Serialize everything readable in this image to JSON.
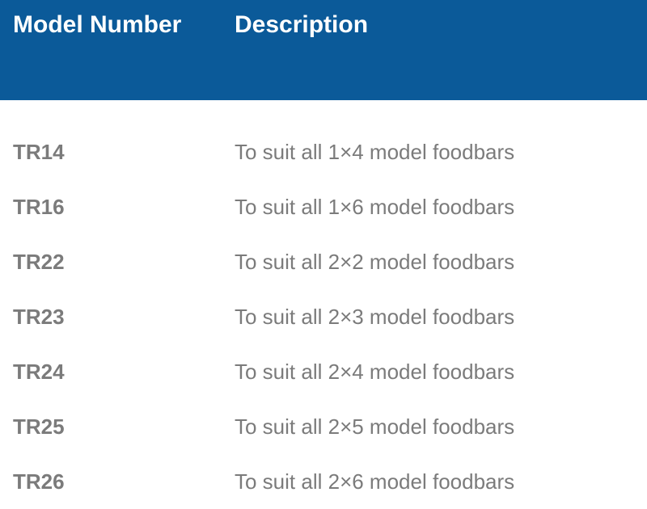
{
  "table": {
    "header_bg": "#0b5a99",
    "header_text_color": "#ffffff",
    "body_text_color": "#7b7b7b",
    "header_fontsize": 30,
    "body_fontsize": 26,
    "columns": {
      "model": "Model Number",
      "description": "Description"
    },
    "rows": [
      {
        "model": "TR14",
        "description": "To suit all 1×4 model foodbars"
      },
      {
        "model": "TR16",
        "description": "To suit all 1×6 model foodbars"
      },
      {
        "model": "TR22",
        "description": "To suit all 2×2 model foodbars"
      },
      {
        "model": "TR23",
        "description": "To suit all 2×3 model foodbars"
      },
      {
        "model": "TR24",
        "description": "To suit all 2×4 model foodbars"
      },
      {
        "model": "TR25",
        "description": "To suit all 2×5 model foodbars"
      },
      {
        "model": "TR26",
        "description": "To suit all 2×6 model foodbars"
      }
    ]
  }
}
